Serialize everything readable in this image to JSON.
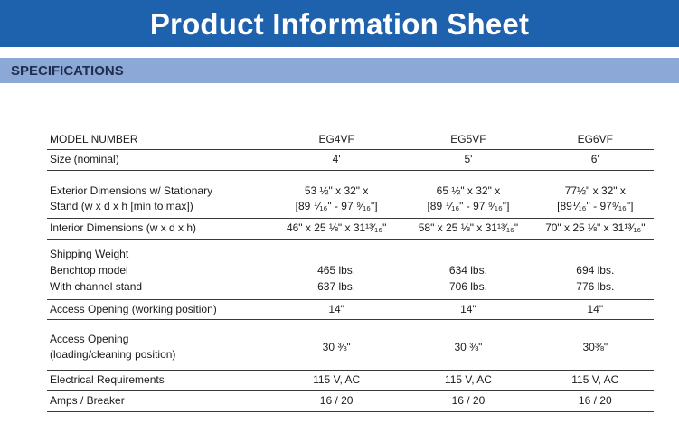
{
  "header": {
    "title": "Product Information Sheet"
  },
  "section": {
    "title": "SPECIFICATIONS"
  },
  "table": {
    "models": [
      "EG4VF",
      "EG5VF",
      "EG6VF"
    ],
    "model_label": "MODEL NUMBER",
    "size": {
      "label": "Size (nominal)",
      "values": [
        "4'",
        "5'",
        "6'"
      ]
    },
    "exterior": {
      "label_line1": "Exterior Dimensions w/ Stationary",
      "label_line2": "Stand (w x d x h [min to max])",
      "values_line1": [
        "53 ½\" x 32\" x",
        "65 ½\" x 32\" x",
        "77½\" x 32\" x"
      ],
      "values_line2": [
        "[89 ⅟₁₆\" - 97 ⁹⁄₁₆\"]",
        "[89 ⅟₁₆\" - 97 ⁹⁄₁₆\"]",
        "[89⅟₁₆\" - 97⁹⁄₁₆\"]"
      ]
    },
    "interior": {
      "label": "Interior Dimensions (w x d x h)",
      "values": [
        "46\" x 25 ⅛\" x 31¹³⁄₁₆\"",
        "58\" x 25 ⅛\" x 31¹³⁄₁₆\"",
        "70\" x 25 ⅛\" x 31¹³⁄₁₆\""
      ]
    },
    "shipping": {
      "label": "Shipping Weight",
      "benchtop_label": "Benchtop model",
      "benchtop_values": [
        "465 lbs.",
        "634 lbs.",
        "694 lbs."
      ],
      "channel_label": "With channel stand",
      "channel_values": [
        "637 lbs.",
        "706 lbs.",
        "776 lbs."
      ]
    },
    "access_working": {
      "label": "Access Opening (working position)",
      "values": [
        "14\"",
        "14\"",
        "14\""
      ]
    },
    "access_loading": {
      "label_line1": "Access Opening",
      "label_line2": "(loading/cleaning position)",
      "values": [
        "30 ⅜\"",
        "30 ⅜\"",
        "30⅜\""
      ]
    },
    "electrical": {
      "label": "Electrical Requirements",
      "values": [
        "115 V, AC",
        "115 V, AC",
        "115 V, AC"
      ]
    },
    "amps": {
      "label": "Amps / Breaker",
      "values": [
        "16 / 20",
        "16 / 20",
        "16 / 20"
      ]
    }
  }
}
